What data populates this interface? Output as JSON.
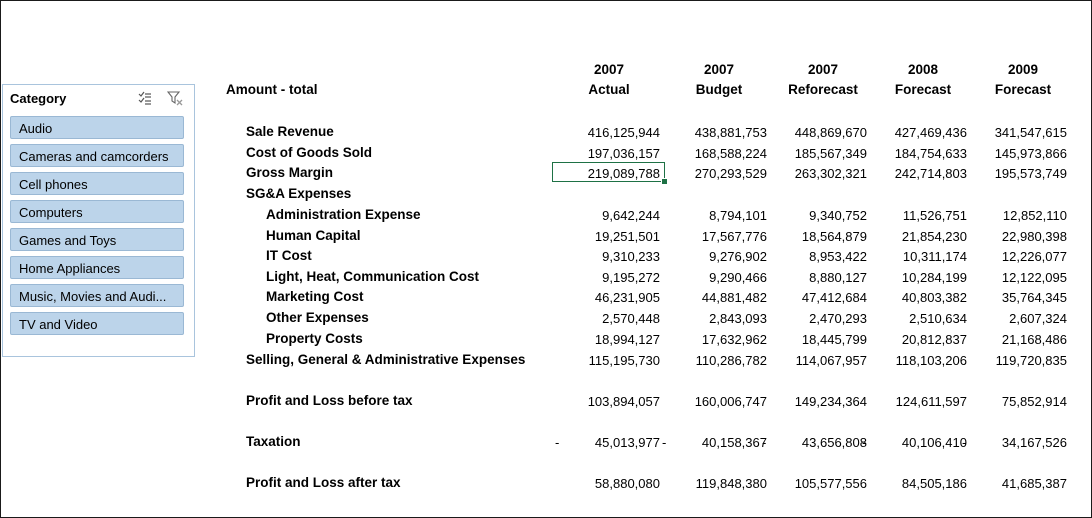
{
  "slicer": {
    "title": "Category",
    "items": [
      "Audio",
      "Cameras and camcorders",
      "Cell phones",
      "Computers",
      "Games and Toys",
      "Home Appliances",
      "Music, Movies and Audi...",
      "TV and Video"
    ]
  },
  "report": {
    "title": "Amount - total",
    "columns": [
      {
        "year": "2007",
        "scenario": "Actual"
      },
      {
        "year": "2007",
        "scenario": "Budget"
      },
      {
        "year": "2007",
        "scenario": "Reforecast"
      },
      {
        "year": "2008",
        "scenario": "Forecast"
      },
      {
        "year": "2009",
        "scenario": "Forecast"
      }
    ],
    "rows": [
      {
        "label": "Sale Revenue",
        "values": [
          "416,125,944",
          "438,881,753",
          "448,869,670",
          "427,469,436",
          "341,547,615"
        ]
      },
      {
        "label": "Cost of Goods Sold",
        "values": [
          "197,036,157",
          "168,588,224",
          "185,567,349",
          "184,754,633",
          "145,973,866"
        ]
      },
      {
        "label": "Gross Margin",
        "values": [
          "219,089,788",
          "270,293,529",
          "263,302,321",
          "242,714,803",
          "195,573,749"
        ]
      },
      {
        "label": "SG&A Expenses",
        "values": []
      },
      {
        "label": "Administration Expense",
        "values": [
          "9,642,244",
          "8,794,101",
          "9,340,752",
          "11,526,751",
          "12,852,110"
        ]
      },
      {
        "label": "Human Capital",
        "values": [
          "19,251,501",
          "17,567,776",
          "18,564,879",
          "21,854,230",
          "22,980,398"
        ]
      },
      {
        "label": "IT Cost",
        "values": [
          "9,310,233",
          "9,276,902",
          "8,953,422",
          "10,311,174",
          "12,226,077"
        ]
      },
      {
        "label": "Light, Heat, Communication Cost",
        "values": [
          "9,195,272",
          "9,290,466",
          "8,880,127",
          "10,284,199",
          "12,122,095"
        ]
      },
      {
        "label": "Marketing Cost",
        "values": [
          "46,231,905",
          "44,881,482",
          "47,412,684",
          "40,803,382",
          "35,764,345"
        ]
      },
      {
        "label": "Other Expenses",
        "values": [
          "2,570,448",
          "2,843,093",
          "2,470,293",
          "2,510,634",
          "2,607,324"
        ]
      },
      {
        "label": "Property Costs",
        "values": [
          "18,994,127",
          "17,632,962",
          "18,445,799",
          "20,812,837",
          "21,168,486"
        ]
      },
      {
        "label": "Selling, General & Administrative Expenses",
        "values": [
          "115,195,730",
          "110,286,782",
          "114,067,957",
          "118,103,206",
          "119,720,835"
        ]
      },
      {
        "label": "Profit and Loss before tax",
        "values": [
          "103,894,057",
          "160,006,747",
          "149,234,364",
          "124,611,597",
          "75,852,914"
        ]
      },
      {
        "label": "Taxation",
        "values": [
          "45,013,977",
          "40,158,367",
          "43,656,808",
          "40,106,410",
          "34,167,526"
        ],
        "negative_marker": "-"
      },
      {
        "label": "Profit and Loss after tax",
        "values": [
          "58,880,080",
          "119,848,380",
          "105,577,556",
          "84,505,186",
          "41,685,387"
        ]
      }
    ]
  }
}
